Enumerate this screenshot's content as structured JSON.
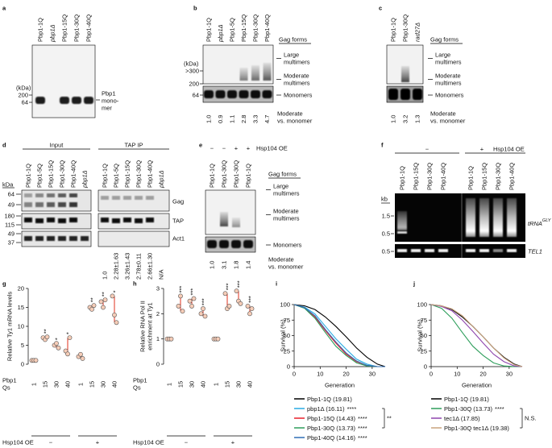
{
  "panels": {
    "a": {
      "letter": "a",
      "lanes": [
        "Pbp1-1Q",
        "pbp1Δ",
        "Pbp1-15Q",
        "Pbp1-30Q",
        "Pbp1-40Q"
      ],
      "kda": "(kDa)",
      "markers": [
        "200",
        "64"
      ],
      "band_label": [
        "Pbp1",
        "mono-",
        "mer"
      ]
    },
    "b": {
      "letter": "b",
      "lanes": [
        "Pbp1-1Q",
        "pbp1Δ",
        "Pbp1-5Q",
        "Pbp1-15Q",
        "Pbp1-30Q",
        "Pbp1-40Q"
      ],
      "kda": "(kDa)",
      "markers": [
        ">300",
        "200",
        "64"
      ],
      "gag_forms": "Gag forms",
      "forms": [
        [
          "Large",
          "multimers"
        ],
        [
          "Moderate",
          "multimers"
        ],
        [
          "Monomers"
        ]
      ],
      "ratios": [
        "1.0",
        "0.9",
        "1.1",
        "2.8",
        "3.3",
        "4.7"
      ],
      "ratio_label": [
        "Moderate",
        "vs. monomer"
      ]
    },
    "c": {
      "letter": "c",
      "lanes": [
        "Pbp1-1Q",
        "Pbp1-30Q",
        "rad27Δ"
      ],
      "gag_forms": "Gag forms",
      "forms": [
        [
          "Large",
          "multimers"
        ],
        [
          "Moderate",
          "multimers"
        ],
        [
          "Monomers"
        ]
      ],
      "ratios": [
        "1.0",
        "3.2",
        "1.3"
      ],
      "ratio_label": [
        "Moderate",
        "vs. monomer"
      ]
    },
    "d": {
      "letter": "d",
      "groups": [
        "Input",
        "TAP IP"
      ],
      "input_lanes": [
        "Pbp1-1Q",
        "Pbp1-5Q",
        "Pbp1-15Q",
        "Pbp1-30Q",
        "Pbp1-40Q",
        "pbp1Δ"
      ],
      "ip_lanes": [
        "Pbp1-1Q",
        "Pbp1-5Q",
        "Pbp1-15Q",
        "Pbp1-30Q",
        "Pbp1-40Q",
        "pbp1Δ"
      ],
      "kda": "kDa",
      "markers": [
        "64",
        "49",
        "180",
        "115",
        "49",
        "37"
      ],
      "proteins": [
        "Gag",
        "TAP",
        "Act1"
      ],
      "ratios": [
        "1.0",
        "2.28±1.63",
        "3.26±1.43",
        "2.78±0.11",
        "2.66±1.30",
        "N/A"
      ]
    },
    "e": {
      "letter": "e",
      "hsp": [
        "−",
        "−",
        "+",
        "+"
      ],
      "hsp_label": "Hsp104 OE",
      "lanes": [
        "Pbp1-1Q",
        "Pbp1-30Q",
        "Pbp1-30Q",
        "Pbp1-1Q"
      ],
      "gag_forms": "Gag forms",
      "forms": [
        [
          "Large",
          "multimers"
        ],
        [
          "Moderate",
          "multimers"
        ],
        [
          "Monomers"
        ]
      ],
      "ratios": [
        "1.0",
        "3.1",
        "1.8",
        "1.4"
      ],
      "ratio_label": [
        "Moderate",
        "vs. monomer"
      ]
    },
    "f": {
      "letter": "f",
      "hsp": [
        "−",
        "+"
      ],
      "hsp_label": "Hsp104 OE",
      "lanes": [
        "Pbp1-1Q",
        "Pbp1-15Q",
        "Pbp1-30Q",
        "Pbp1-40Q",
        "Pbp1-1Q",
        "Pbp1-15Q",
        "Pbp1-30Q",
        "Pbp1-40Q"
      ],
      "kb": "kb",
      "markers": [
        "1.5",
        "0.5",
        "0.5"
      ],
      "trna": "tRNA",
      "trna_sup": "GLY",
      "tel1": "TEL1"
    }
  },
  "chart_data": [
    {
      "type": "dot",
      "panel_label": "g",
      "y_label": [
        "Relative Ty1 mRNA levels"
      ],
      "ylim": [
        0,
        20
      ],
      "yticks": [
        0,
        5,
        10,
        15,
        20
      ],
      "categories": [
        "1",
        "15",
        "30",
        "40",
        "1",
        "15",
        "30",
        "40"
      ],
      "values": [
        [
          1,
          1,
          1
        ],
        [
          7,
          6.5,
          7.2
        ],
        [
          5,
          5.5,
          4.3
        ],
        [
          3.5,
          2.7,
          7
        ],
        [
          2,
          2.6,
          1.5
        ],
        [
          15,
          14.5,
          15.5
        ],
        [
          16.5,
          15,
          17
        ],
        [
          18,
          13,
          11
        ]
      ],
      "annotations": [
        null,
        "**",
        "*",
        "*",
        null,
        "**",
        "**",
        "*"
      ],
      "x_label": [
        "Pbp1",
        "Qs"
      ],
      "condition_label": "Hsp104 OE",
      "conditions": [
        "−",
        "+"
      ],
      "color": "#e0301e",
      "marker_fill": "#f6cdb8"
    },
    {
      "type": "dot",
      "panel_label": "h",
      "y_label": [
        "Relative RNA Pol II",
        "enrichment at Ty1"
      ],
      "ylim": [
        0,
        3
      ],
      "yticks": [
        0,
        1,
        2,
        3
      ],
      "categories": [
        "1",
        "15",
        "30",
        "40",
        "1",
        "15",
        "30",
        "40"
      ],
      "values": [
        [
          1,
          1,
          1
        ],
        [
          2.3,
          2.7,
          2.1
        ],
        [
          2.5,
          2.3,
          2.6
        ],
        [
          2,
          2.2,
          1.9
        ],
        [
          1,
          1,
          1
        ],
        [
          2.8,
          2.2,
          2.3
        ],
        [
          2.9,
          2.5,
          2.4
        ],
        [
          2.3,
          2,
          2.2
        ]
      ],
      "annotations": [
        null,
        "***",
        "***",
        "***",
        null,
        "***",
        "***",
        "***"
      ],
      "x_label": [
        "Pbp1",
        "Qs"
      ],
      "condition_label": "Hsp104 OE",
      "conditions": [
        "−",
        "+"
      ],
      "color": "#e0301e",
      "marker_fill": "#f6cdb8"
    },
    {
      "type": "line",
      "panel_label": "i",
      "y_label": [
        "Survival (%)"
      ],
      "x_label": "Generation",
      "xlim": [
        0,
        35
      ],
      "xticks": [
        0,
        10,
        20,
        30
      ],
      "ylim": [
        0,
        100
      ],
      "yticks": [
        0,
        25,
        50,
        75,
        100
      ],
      "x": [
        0,
        4,
        8,
        12,
        16,
        20,
        24,
        28,
        32,
        35
      ],
      "series": [
        {
          "name": "Pbp1-1Q (19.81)",
          "color": "#000000",
          "values": [
            100,
            98,
            92,
            80,
            65,
            48,
            30,
            15,
            4,
            0
          ]
        },
        {
          "name": "pbp1Δ (16.11)",
          "sig": "****",
          "color": "#29abe2",
          "values": [
            100,
            96,
            85,
            65,
            45,
            28,
            12,
            4,
            0,
            0
          ]
        },
        {
          "name": "Pbp1-15Q (14.43)",
          "sig": "****",
          "color": "#e8202a",
          "values": [
            100,
            95,
            80,
            58,
            38,
            20,
            8,
            2,
            0,
            0
          ]
        },
        {
          "name": "Pbp1-30Q (13.73)",
          "sig": "****",
          "color": "#2e9e5b",
          "values": [
            100,
            94,
            78,
            55,
            33,
            18,
            6,
            1,
            0,
            0
          ]
        },
        {
          "name": "Pbp1-40Q (14.16)",
          "sig": "****",
          "color": "#2f6db5",
          "values": [
            100,
            95,
            82,
            60,
            40,
            22,
            9,
            2,
            0,
            0
          ]
        }
      ],
      "bracket_label": "**"
    },
    {
      "type": "line",
      "panel_label": "j",
      "y_label": [
        "Survival (%)"
      ],
      "x_label": "Generation",
      "xlim": [
        0,
        35
      ],
      "xticks": [
        0,
        10,
        20,
        30
      ],
      "ylim": [
        0,
        100
      ],
      "yticks": [
        0,
        25,
        50,
        75,
        100
      ],
      "x": [
        0,
        4,
        8,
        12,
        16,
        20,
        24,
        28,
        32,
        35
      ],
      "series": [
        {
          "name": "Pbp1-1Q (19.81)",
          "color": "#000000",
          "values": [
            100,
            98,
            92,
            80,
            65,
            48,
            30,
            15,
            4,
            0
          ]
        },
        {
          "name": "Pbp1-30Q (13.73)",
          "sig": "****",
          "color": "#2e9e5b",
          "values": [
            100,
            94,
            78,
            55,
            33,
            18,
            6,
            1,
            0,
            0
          ]
        },
        {
          "name": "tec1Δ (17.85)",
          "color": "#8e44ad",
          "values": [
            100,
            97,
            90,
            75,
            57,
            38,
            20,
            8,
            1,
            0
          ]
        },
        {
          "name": "Pbp1-30Q tec1Δ (19.38)",
          "color": "#c8a27c",
          "values": [
            100,
            98,
            93,
            82,
            65,
            48,
            30,
            14,
            3,
            0
          ]
        }
      ],
      "bracket_label": "N.S."
    }
  ]
}
